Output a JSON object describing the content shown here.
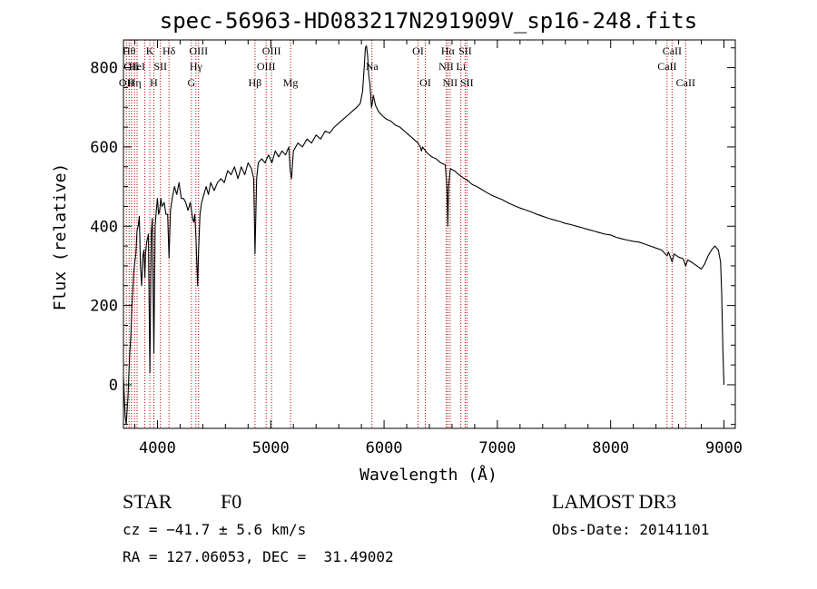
{
  "chart_data": {
    "type": "line",
    "title": "spec-56963-HD083217N291909V_sp16-248.fits",
    "xlabel": "Wavelength (Å)",
    "ylabel": "Flux (relative)",
    "xlim": [
      3700,
      9100
    ],
    "ylim": [
      -110,
      870
    ],
    "xticks": [
      4000,
      5000,
      6000,
      7000,
      8000,
      9000
    ],
    "yticks": [
      0,
      200,
      400,
      600,
      800
    ],
    "grid": false,
    "series": [
      {
        "name": "spectrum",
        "color": "#000000",
        "points": [
          [
            3700,
            20
          ],
          [
            3715,
            -80
          ],
          [
            3725,
            -100
          ],
          [
            3740,
            -30
          ],
          [
            3755,
            80
          ],
          [
            3765,
            120
          ],
          [
            3775,
            200
          ],
          [
            3790,
            280
          ],
          [
            3800,
            310
          ],
          [
            3810,
            330
          ],
          [
            3820,
            390
          ],
          [
            3830,
            400
          ],
          [
            3840,
            425
          ],
          [
            3850,
            300
          ],
          [
            3860,
            250
          ],
          [
            3870,
            320
          ],
          [
            3880,
            340
          ],
          [
            3889,
            270
          ],
          [
            3895,
            330
          ],
          [
            3905,
            360
          ],
          [
            3920,
            380
          ],
          [
            3933,
            30
          ],
          [
            3945,
            380
          ],
          [
            3955,
            420
          ],
          [
            3968,
            80
          ],
          [
            3980,
            400
          ],
          [
            3990,
            440
          ],
          [
            4000,
            470
          ],
          [
            4010,
            430
          ],
          [
            4020,
            440
          ],
          [
            4030,
            470
          ],
          [
            4040,
            450
          ],
          [
            4060,
            460
          ],
          [
            4075,
            430
          ],
          [
            4090,
            430
          ],
          [
            4102,
            320
          ],
          [
            4115,
            440
          ],
          [
            4130,
            470
          ],
          [
            4150,
            500
          ],
          [
            4170,
            480
          ],
          [
            4190,
            510
          ],
          [
            4210,
            470
          ],
          [
            4230,
            470
          ],
          [
            4250,
            460
          ],
          [
            4270,
            440
          ],
          [
            4290,
            460
          ],
          [
            4300,
            440
          ],
          [
            4310,
            420
          ],
          [
            4320,
            410
          ],
          [
            4330,
            430
          ],
          [
            4340,
            370
          ],
          [
            4350,
            290
          ],
          [
            4355,
            250
          ],
          [
            4362,
            330
          ],
          [
            4375,
            430
          ],
          [
            4390,
            460
          ],
          [
            4410,
            480
          ],
          [
            4430,
            500
          ],
          [
            4450,
            480
          ],
          [
            4470,
            510
          ],
          [
            4500,
            490
          ],
          [
            4530,
            510
          ],
          [
            4560,
            520
          ],
          [
            4590,
            510
          ],
          [
            4620,
            540
          ],
          [
            4650,
            530
          ],
          [
            4680,
            550
          ],
          [
            4710,
            520
          ],
          [
            4740,
            550
          ],
          [
            4770,
            530
          ],
          [
            4800,
            560
          ],
          [
            4830,
            545
          ],
          [
            4850,
            520
          ],
          [
            4861,
            330
          ],
          [
            4875,
            520
          ],
          [
            4890,
            560
          ],
          [
            4920,
            570
          ],
          [
            4950,
            560
          ],
          [
            4980,
            580
          ],
          [
            5010,
            560
          ],
          [
            5040,
            590
          ],
          [
            5070,
            575
          ],
          [
            5100,
            590
          ],
          [
            5130,
            580
          ],
          [
            5160,
            600
          ],
          [
            5172,
            540
          ],
          [
            5183,
            520
          ],
          [
            5200,
            590
          ],
          [
            5240,
            610
          ],
          [
            5280,
            600
          ],
          [
            5320,
            620
          ],
          [
            5360,
            610
          ],
          [
            5400,
            630
          ],
          [
            5440,
            620
          ],
          [
            5480,
            640
          ],
          [
            5520,
            635
          ],
          [
            5560,
            650
          ],
          [
            5600,
            660
          ],
          [
            5640,
            670
          ],
          [
            5680,
            680
          ],
          [
            5720,
            690
          ],
          [
            5760,
            700
          ],
          [
            5790,
            710
          ],
          [
            5810,
            740
          ],
          [
            5825,
            800
          ],
          [
            5835,
            850
          ],
          [
            5845,
            855
          ],
          [
            5855,
            830
          ],
          [
            5865,
            780
          ],
          [
            5875,
            760
          ],
          [
            5889,
            700
          ],
          [
            5896,
            710
          ],
          [
            5905,
            730
          ],
          [
            5925,
            705
          ],
          [
            5950,
            690
          ],
          [
            5980,
            680
          ],
          [
            6020,
            670
          ],
          [
            6060,
            665
          ],
          [
            6100,
            655
          ],
          [
            6140,
            650
          ],
          [
            6180,
            640
          ],
          [
            6220,
            630
          ],
          [
            6260,
            620
          ],
          [
            6300,
            610
          ],
          [
            6320,
            600
          ],
          [
            6330,
            590
          ],
          [
            6340,
            600
          ],
          [
            6380,
            585
          ],
          [
            6420,
            575
          ],
          [
            6460,
            570
          ],
          [
            6500,
            560
          ],
          [
            6540,
            555
          ],
          [
            6555,
            500
          ],
          [
            6563,
            400
          ],
          [
            6570,
            500
          ],
          [
            6585,
            545
          ],
          [
            6620,
            540
          ],
          [
            6660,
            530
          ],
          [
            6700,
            522
          ],
          [
            6740,
            515
          ],
          [
            6780,
            505
          ],
          [
            6820,
            500
          ],
          [
            6860,
            493
          ],
          [
            6900,
            486
          ],
          [
            6950,
            478
          ],
          [
            7000,
            472
          ],
          [
            7050,
            466
          ],
          [
            7100,
            458
          ],
          [
            7150,
            452
          ],
          [
            7200,
            446
          ],
          [
            7250,
            441
          ],
          [
            7300,
            436
          ],
          [
            7350,
            430
          ],
          [
            7400,
            425
          ],
          [
            7450,
            420
          ],
          [
            7500,
            416
          ],
          [
            7550,
            412
          ],
          [
            7600,
            407
          ],
          [
            7650,
            404
          ],
          [
            7700,
            400
          ],
          [
            7750,
            396
          ],
          [
            7800,
            392
          ],
          [
            7850,
            388
          ],
          [
            7900,
            384
          ],
          [
            7950,
            380
          ],
          [
            8000,
            378
          ],
          [
            8050,
            372
          ],
          [
            8100,
            368
          ],
          [
            8150,
            365
          ],
          [
            8200,
            362
          ],
          [
            8250,
            360
          ],
          [
            8300,
            355
          ],
          [
            8350,
            350
          ],
          [
            8400,
            345
          ],
          [
            8450,
            340
          ],
          [
            8498,
            325
          ],
          [
            8510,
            335
          ],
          [
            8542,
            310
          ],
          [
            8560,
            330
          ],
          [
            8600,
            322
          ],
          [
            8640,
            318
          ],
          [
            8662,
            300
          ],
          [
            8680,
            315
          ],
          [
            8720,
            308
          ],
          [
            8760,
            300
          ],
          [
            8800,
            292
          ],
          [
            8830,
            305
          ],
          [
            8860,
            325
          ],
          [
            8890,
            340
          ],
          [
            8920,
            350
          ],
          [
            8950,
            340
          ],
          [
            8970,
            310
          ],
          [
            8980,
            230
          ],
          [
            8990,
            90
          ],
          [
            9000,
            0
          ]
        ]
      }
    ],
    "lines": [
      {
        "wavelength": 3726,
        "tier": 2,
        "label": "OII"
      },
      {
        "wavelength": 3750,
        "tier": 0,
        "label": "Hθ"
      },
      {
        "wavelength": 3770,
        "tier": 1,
        "label": "OII"
      },
      {
        "wavelength": 3798,
        "tier": 2,
        "label": "Hη"
      },
      {
        "wavelength": 3820,
        "tier": 1,
        "label": "HeI"
      },
      {
        "wavelength": 3889,
        "tier": 2,
        "label": ""
      },
      {
        "wavelength": 3933,
        "tier": 0,
        "label": "K"
      },
      {
        "wavelength": 3968,
        "tier": 2,
        "label": "H"
      },
      {
        "wavelength": 4026,
        "tier": 1,
        "label": "SII"
      },
      {
        "wavelength": 4102,
        "tier": 0,
        "label": "Hδ"
      },
      {
        "wavelength": 4300,
        "tier": 2,
        "label": "G"
      },
      {
        "wavelength": 4340,
        "tier": 1,
        "label": "Hγ"
      },
      {
        "wavelength": 4363,
        "tier": 0,
        "label": "OIII"
      },
      {
        "wavelength": 4861,
        "tier": 2,
        "label": "Hβ"
      },
      {
        "wavelength": 4959,
        "tier": 1,
        "label": "OIII"
      },
      {
        "wavelength": 5007,
        "tier": 0,
        "label": "OIII"
      },
      {
        "wavelength": 5175,
        "tier": 2,
        "label": "Mg"
      },
      {
        "wavelength": 5893,
        "tier": 1,
        "label": "Na"
      },
      {
        "wavelength": 6300,
        "tier": 0,
        "label": "OI"
      },
      {
        "wavelength": 6364,
        "tier": 2,
        "label": "OI"
      },
      {
        "wavelength": 6548,
        "tier": 1,
        "label": "NII"
      },
      {
        "wavelength": 6563,
        "tier": 0,
        "label": "Hα"
      },
      {
        "wavelength": 6583,
        "tier": 2,
        "label": "NII"
      },
      {
        "wavelength": 6678,
        "tier": 1,
        "label": "Li"
      },
      {
        "wavelength": 6716,
        "tier": 0,
        "label": "SII"
      },
      {
        "wavelength": 6731,
        "tier": 2,
        "label": "SII"
      },
      {
        "wavelength": 8498,
        "tier": 1,
        "label": "CaII"
      },
      {
        "wavelength": 8542,
        "tier": 0,
        "label": "CaII"
      },
      {
        "wavelength": 8662,
        "tier": 2,
        "label": "CaII"
      }
    ],
    "colors": {
      "line_marker": "#b00000",
      "spectrum": "#000000",
      "axes": "#000000"
    }
  },
  "footer": {
    "object_class": "STAR",
    "subclass": "F0",
    "survey": "LAMOST DR3",
    "redshift": "cz = −41.7 ± 5.6 km/s",
    "obs_date": "Obs-Date: 20141101",
    "coordinates": "RA = 127.06053, DEC =  31.49002"
  }
}
